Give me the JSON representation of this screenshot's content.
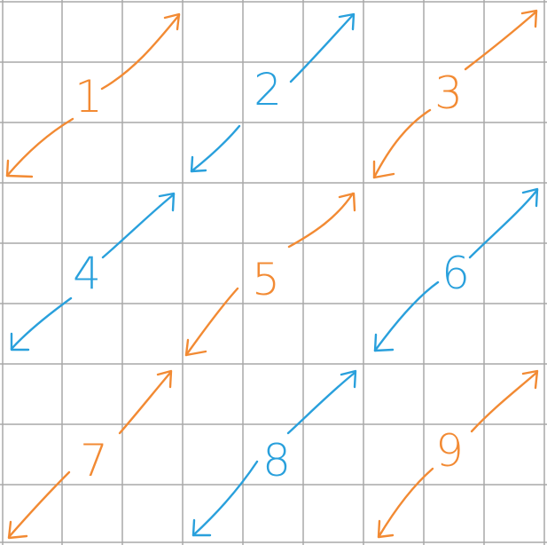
{
  "grid": {
    "rows": 9,
    "columns": 9,
    "line_color": "#a9a9a9",
    "background": "#ffffff"
  },
  "colors": {
    "orange": "#f28a33",
    "blue": "#29a0dc"
  },
  "cells": [
    {
      "label": "1",
      "color": "orange"
    },
    {
      "label": "2",
      "color": "blue"
    },
    {
      "label": "3",
      "color": "orange"
    },
    {
      "label": "4",
      "color": "blue"
    },
    {
      "label": "5",
      "color": "orange"
    },
    {
      "label": "6",
      "color": "blue"
    },
    {
      "label": "7",
      "color": "orange"
    },
    {
      "label": "8",
      "color": "blue"
    },
    {
      "label": "9",
      "color": "orange"
    }
  ]
}
